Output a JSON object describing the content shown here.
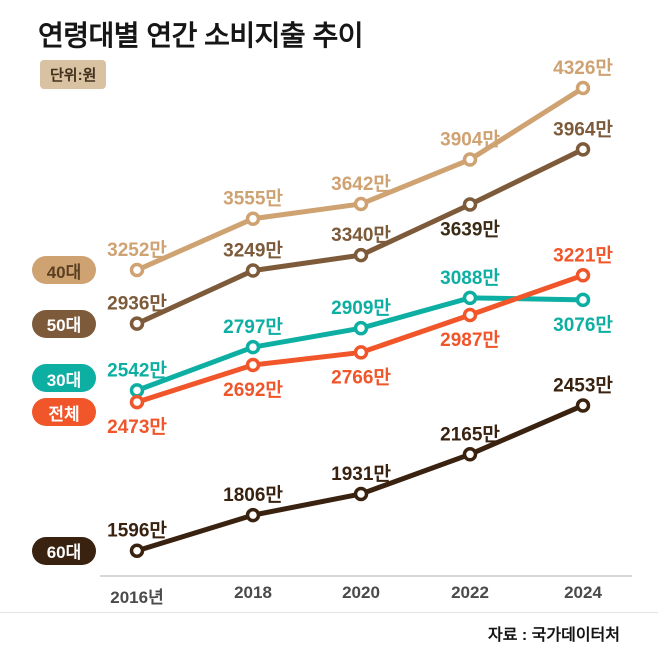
{
  "title": "연령대별 연간 소비지출 추이",
  "unit_badge": "단위:원",
  "source": "자료 : 국가데이터처",
  "chart_data": {
    "type": "line",
    "title": "연령대별 연간 소비지출 추이",
    "unit": "만원",
    "x": [
      "2016년",
      "2018",
      "2020",
      "2022",
      "2024"
    ],
    "value_suffix": "만",
    "ylim": [
      1500,
      4450
    ],
    "grid": false,
    "legend_position": "left-pills",
    "series": [
      {
        "name": "40대",
        "color": "#cfa272",
        "pill_text_color": "#5b3f22",
        "values": [
          3252,
          3555,
          3642,
          3904,
          4326
        ],
        "label_pos": [
          "above",
          "above",
          "above",
          "above",
          "above"
        ]
      },
      {
        "name": "50대",
        "color": "#7d5b3a",
        "pill_text_color": "#ffffff",
        "values": [
          2936,
          3249,
          3340,
          3639,
          3964
        ],
        "label_pos": [
          "above",
          "above",
          "above",
          "below",
          "above"
        ],
        "label_colors": [
          "#7d5b3a",
          "#7d5b3a",
          "#7d5b3a",
          "#3b2a16",
          "#7d5b3a"
        ]
      },
      {
        "name": "30대",
        "color": "#0eafa3",
        "pill_text_color": "#ffffff",
        "values": [
          2542,
          2797,
          2909,
          3088,
          3076
        ],
        "label_pos": [
          "above",
          "above",
          "above",
          "above",
          "below"
        ]
      },
      {
        "name": "전체",
        "color": "#f1552a",
        "pill_text_color": "#ffffff",
        "values": [
          2473,
          2692,
          2766,
          2987,
          3221
        ],
        "label_pos": [
          "below",
          "below",
          "below",
          "below",
          "above"
        ]
      },
      {
        "name": "60대",
        "color": "#39220f",
        "pill_text_color": "#ffffff",
        "values": [
          1596,
          1806,
          1931,
          2165,
          2453
        ],
        "label_pos": [
          "above",
          "above",
          "above",
          "above",
          "above"
        ]
      }
    ]
  }
}
